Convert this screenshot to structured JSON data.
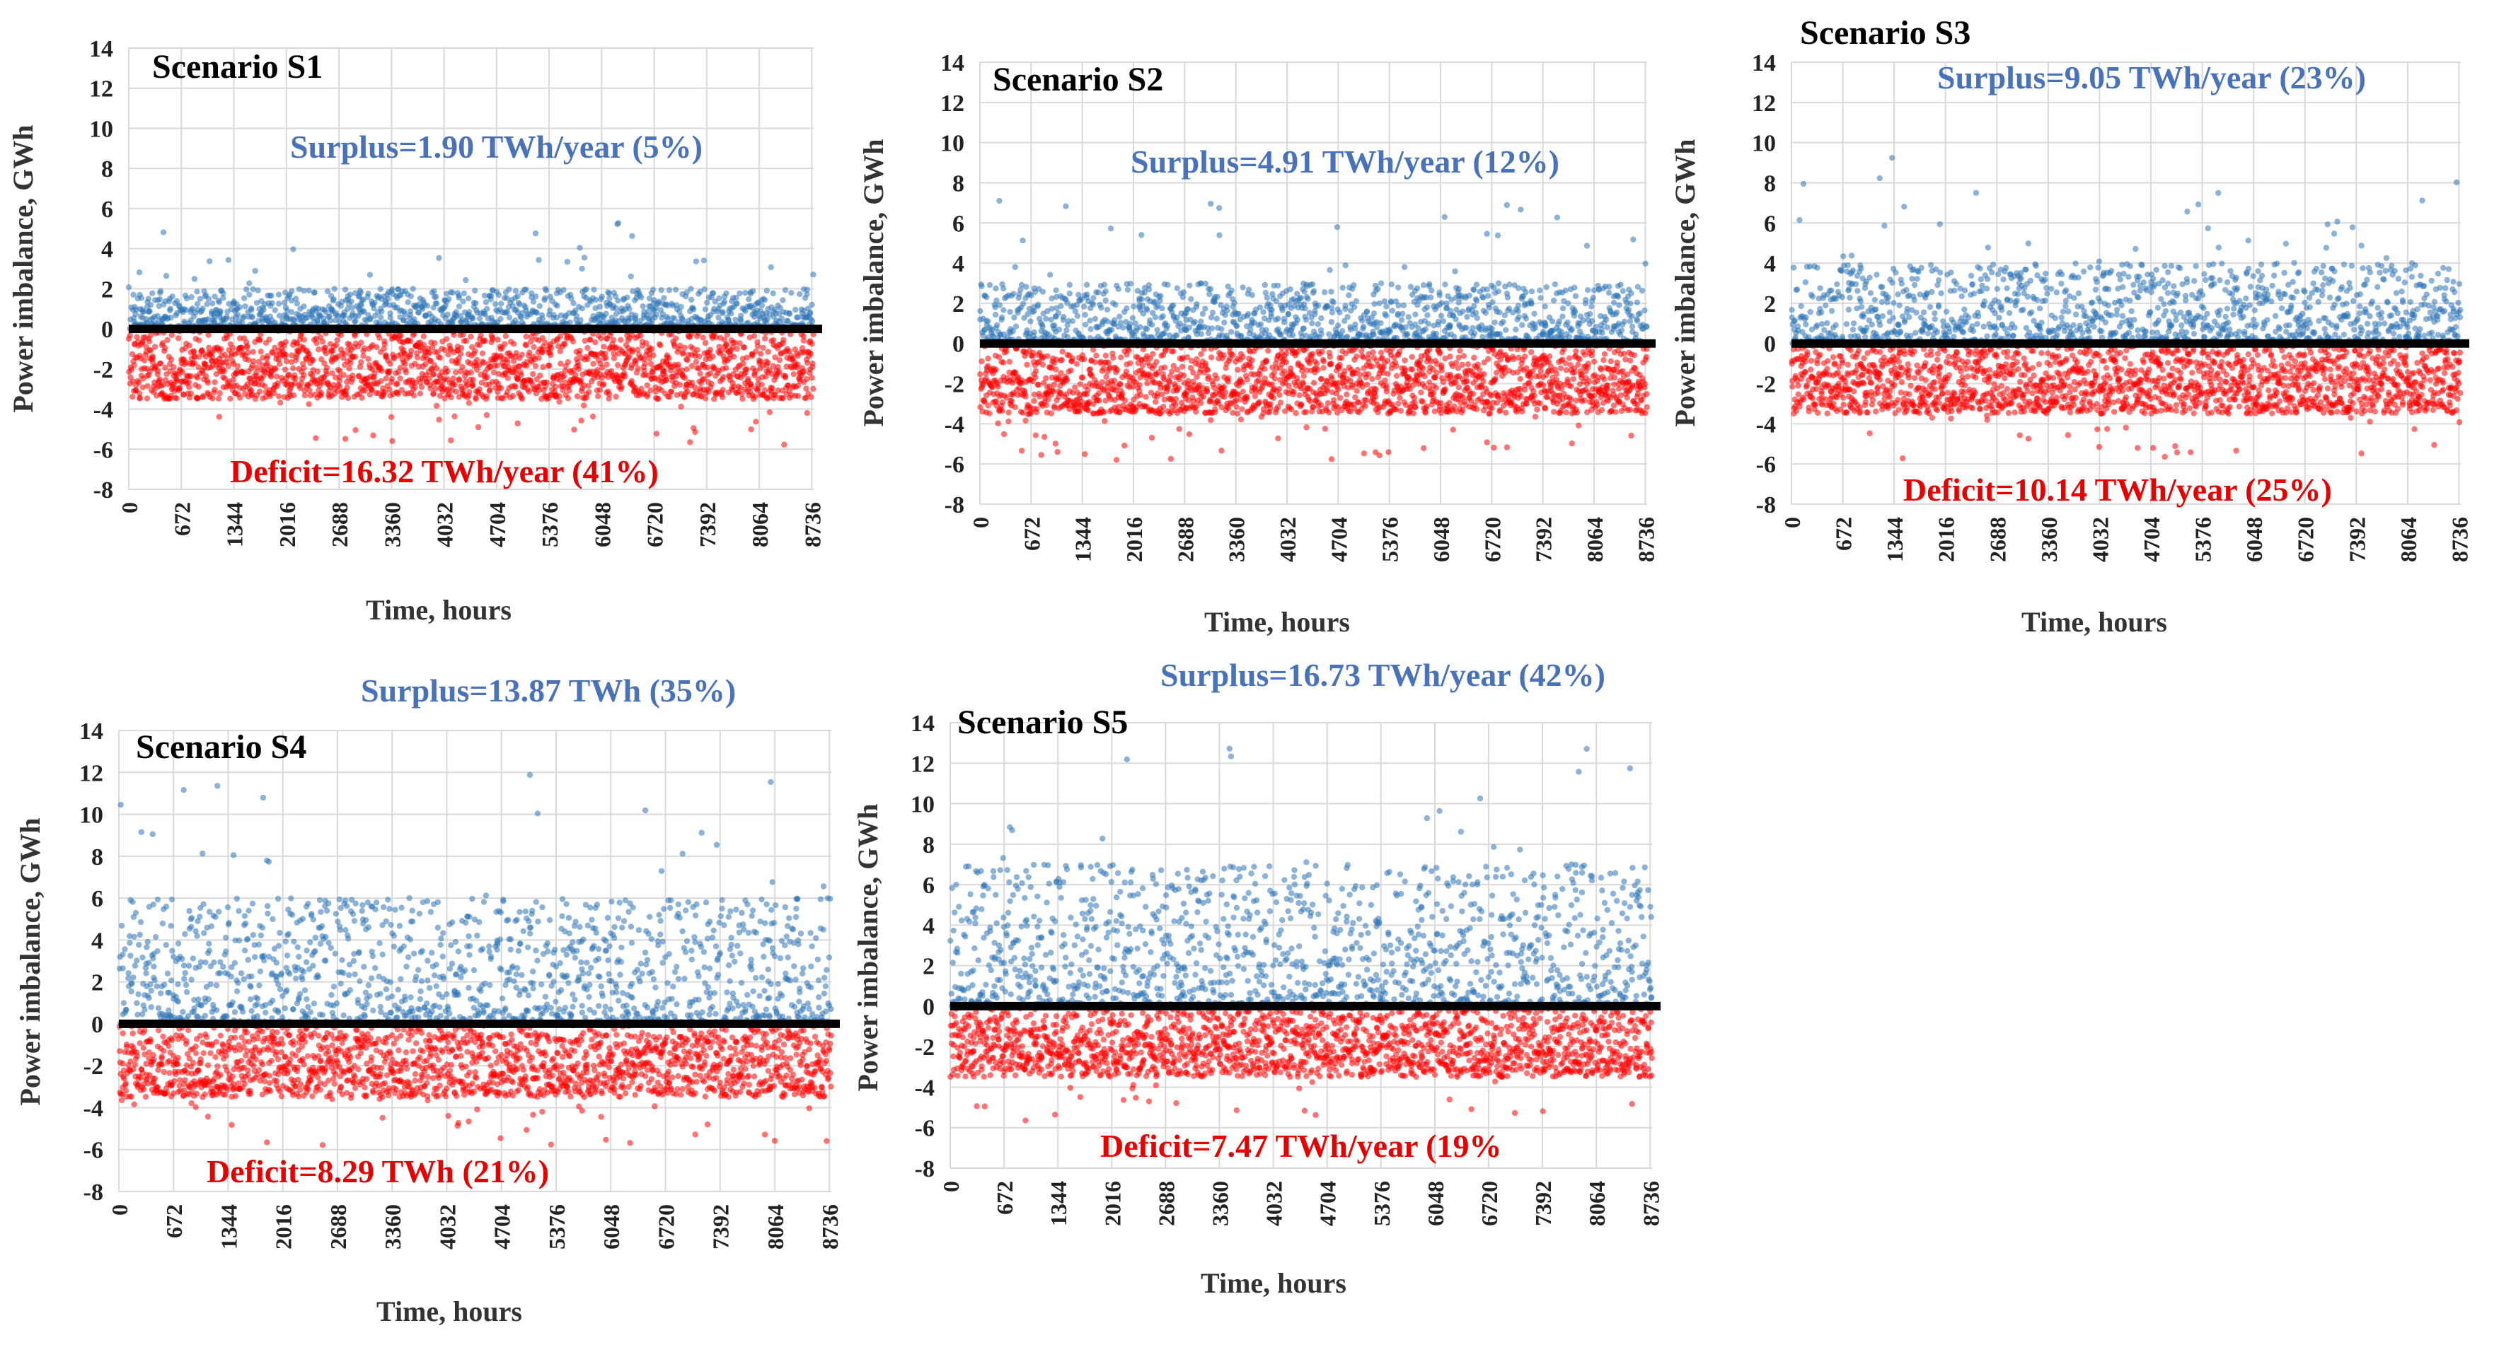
{
  "chart_data": [
    {
      "type": "scatter",
      "title": "Scenario S1",
      "xlabel": "Time, hours",
      "ylabel": "Power imbalance, GWh",
      "ylim": [
        -8,
        14
      ],
      "yticks": [
        -8,
        -6,
        -4,
        -2,
        0,
        2,
        4,
        6,
        8,
        10,
        12,
        14
      ],
      "xticks": [
        "0",
        "672",
        "1344",
        "2016",
        "2688",
        "3360",
        "4032",
        "4704",
        "5376",
        "6048",
        "6720",
        "7392",
        "8064",
        "8736"
      ],
      "xlim": [
        0,
        8760
      ],
      "annotations": {
        "surplus": "Surplus=1.90 TWh/year (5%)",
        "deficit": "Deficit=16.32 TWh/year (41%)"
      },
      "series": [
        {
          "color": "#2e75b6",
          "profile": {
            "typical_max": 2.0,
            "peak_max": 5.5
          }
        },
        {
          "color": "#ff0000",
          "profile": {
            "typical_min": -3.5,
            "peak_min": -5.8
          }
        }
      ],
      "grid": true
    },
    {
      "type": "scatter",
      "title": "Scenario S2",
      "xlabel": "Time, hours",
      "ylabel": "Power imbalance, GWh",
      "ylim": [
        -8,
        14
      ],
      "yticks": [
        -8,
        -6,
        -4,
        -2,
        0,
        2,
        4,
        6,
        8,
        10,
        12,
        14
      ],
      "xticks": [
        "0",
        "672",
        "1344",
        "2016",
        "2688",
        "3360",
        "4032",
        "4704",
        "5376",
        "6048",
        "6720",
        "7392",
        "8064",
        "8736"
      ],
      "xlim": [
        0,
        8760
      ],
      "annotations": {
        "surplus": "Surplus=4.91 TWh/year (12%)",
        "deficit": ""
      },
      "series": [
        {
          "color": "#2e75b6",
          "profile": {
            "typical_max": 3.0,
            "peak_max": 7.5
          }
        },
        {
          "color": "#ff0000",
          "profile": {
            "typical_min": -3.5,
            "peak_min": -5.8
          }
        }
      ],
      "grid": true
    },
    {
      "type": "scatter",
      "title": "Scenario S3",
      "xlabel": "Time, hours",
      "ylabel": "Power imbalance, GWh",
      "ylim": [
        -8,
        14
      ],
      "yticks": [
        -8,
        -6,
        -4,
        -2,
        0,
        2,
        4,
        6,
        8,
        10,
        12,
        14
      ],
      "xticks": [
        "0",
        "672",
        "1344",
        "2016",
        "2688",
        "3360",
        "4032",
        "4704",
        "5376",
        "6048",
        "6720",
        "7392",
        "8064",
        "8736"
      ],
      "xlim": [
        0,
        8760
      ],
      "annotations": {
        "surplus": "Surplus=9.05 TWh/year (23%)",
        "deficit": "Deficit=10.14 TWh/year (25%)"
      },
      "series": [
        {
          "color": "#2e75b6",
          "profile": {
            "typical_max": 4.0,
            "peak_max": 9.7
          }
        },
        {
          "color": "#ff0000",
          "profile": {
            "typical_min": -3.5,
            "peak_min": -5.8
          }
        }
      ],
      "grid": true
    },
    {
      "type": "scatter",
      "title": "Scenario S4",
      "xlabel": "Time, hours",
      "ylabel": "Power imbalance, GWh",
      "ylim": [
        -8,
        14
      ],
      "yticks": [
        -8,
        -6,
        -4,
        -2,
        0,
        2,
        4,
        6,
        8,
        10,
        12,
        14
      ],
      "xticks": [
        "0",
        "672",
        "1344",
        "2016",
        "2688",
        "3360",
        "4032",
        "4704",
        "5376",
        "6048",
        "6720",
        "7392",
        "8064",
        "8736"
      ],
      "xlim": [
        0,
        8760
      ],
      "annotations": {
        "surplus": "Surplus=13.87 TWh (35%)",
        "deficit": "Deficit=8.29 TWh (21%)"
      },
      "series": [
        {
          "color": "#2e75b6",
          "profile": {
            "typical_max": 6.0,
            "peak_max": 12.0
          }
        },
        {
          "color": "#ff0000",
          "profile": {
            "typical_min": -3.5,
            "peak_min": -5.8
          }
        }
      ],
      "grid": true
    },
    {
      "type": "scatter",
      "title": "Scenario S5",
      "xlabel": "Time, hours",
      "ylabel": "Power imbalance, GWh",
      "ylim": [
        -8,
        14
      ],
      "yticks": [
        -8,
        -6,
        -4,
        -2,
        0,
        2,
        4,
        6,
        8,
        10,
        12,
        14
      ],
      "xticks": [
        "0",
        "672",
        "1344",
        "2016",
        "2688",
        "3360",
        "4032",
        "4704",
        "5376",
        "6048",
        "6720",
        "7392",
        "8064",
        "8736"
      ],
      "xlim": [
        0,
        8760
      ],
      "annotations": {
        "surplus": "Surplus=16.73 TWh/year (42%)",
        "deficit": "Deficit=7.47 TWh/year (19%"
      },
      "series": [
        {
          "color": "#2e75b6",
          "profile": {
            "typical_max": 7.0,
            "peak_max": 13.0
          }
        },
        {
          "color": "#ff0000",
          "profile": {
            "typical_min": -3.5,
            "peak_min": -5.8
          }
        }
      ],
      "grid": true
    }
  ]
}
